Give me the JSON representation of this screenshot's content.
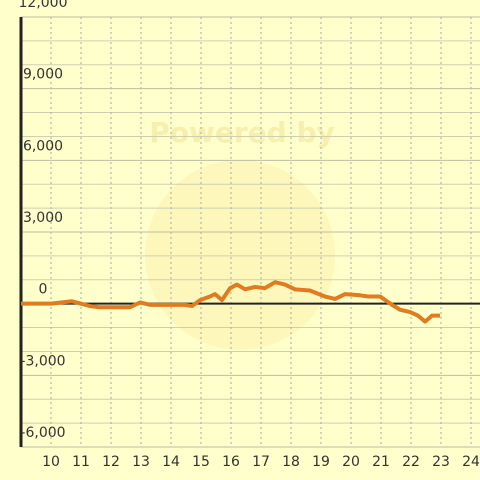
{
  "chart_data": {
    "type": "line",
    "watermark": "Powered by",
    "x": [
      9,
      10,
      10.7,
      11,
      11.3,
      11.6,
      12.63,
      12.97,
      13.3,
      14.47,
      14.7,
      14.97,
      15.3,
      15.47,
      15.7,
      15.97,
      16.2,
      16.47,
      16.8,
      17.13,
      17.47,
      17.8,
      18.13,
      18.63,
      19.13,
      19.47,
      19.8,
      20.3,
      20.57,
      20.97,
      21.37,
      21.63,
      21.97,
      22.23,
      22.47,
      22.7,
      22.97
    ],
    "series": [
      {
        "color": "#e07b20",
        "values": [
          0,
          0,
          100,
          0,
          -100,
          -150,
          -150,
          50,
          -50,
          -50,
          -100,
          150,
          300,
          400,
          150,
          650,
          800,
          600,
          700,
          650,
          900,
          800,
          600,
          550,
          300,
          200,
          400,
          350,
          300,
          300,
          -50,
          -250,
          -350,
          -500,
          -750,
          -500,
          -500
        ]
      }
    ],
    "xlim": [
      9,
      24.3
    ],
    "xticks": [
      10,
      11,
      12,
      13,
      14,
      15,
      16,
      17,
      18,
      19,
      20,
      21,
      22,
      23,
      24
    ],
    "ylim": [
      -6000,
      12000
    ],
    "yticks": [
      {
        "value": -6000,
        "label": "-6,000"
      },
      {
        "value": -3000,
        "label": "-3,000"
      },
      0,
      {
        "value": 3000,
        "label": "3,000"
      },
      {
        "value": 6000,
        "label": "6,000"
      },
      {
        "value": 9000,
        "label": "9,000"
      },
      {
        "value": 12000,
        "label": "12,000"
      }
    ],
    "yminor": [
      -5000,
      -4000,
      -2000,
      -1000,
      1000,
      2000,
      4000,
      5000,
      7000,
      8000,
      10000,
      11000
    ],
    "grid": true
  }
}
